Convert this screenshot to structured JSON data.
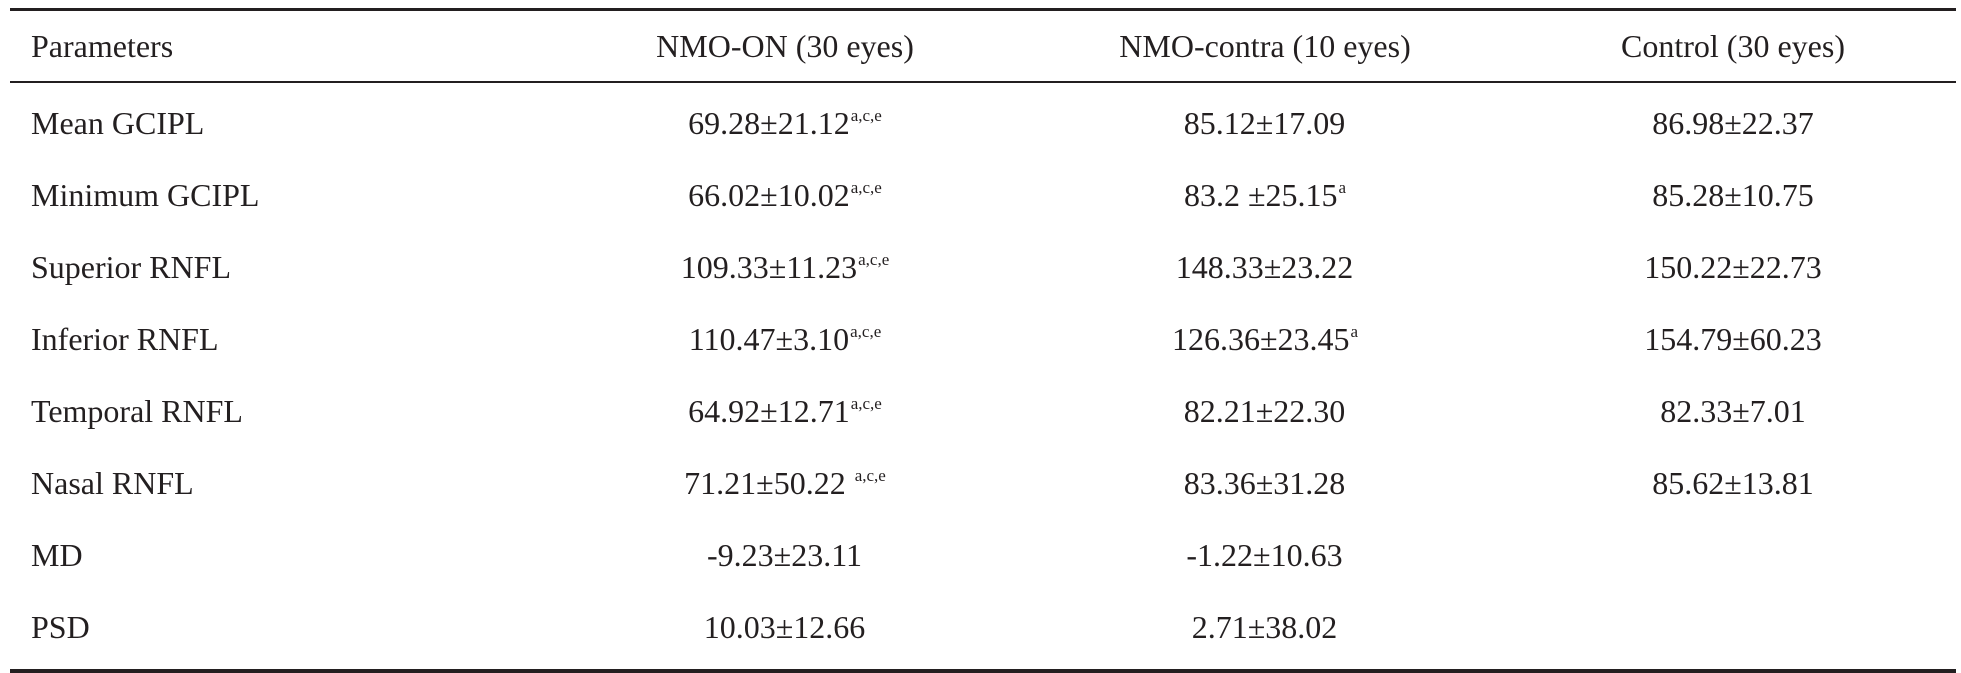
{
  "table": {
    "headers": [
      "Parameters",
      "NMO-ON (30 eyes)",
      "NMO-contra (10 eyes)",
      "Control (30 eyes)"
    ],
    "rows": [
      {
        "parameter": "Mean GCIPL",
        "nmo_on": "69.28±21.12",
        "nmo_on_sup": "a,c,e",
        "nmo_contra": "85.12±17.09",
        "nmo_contra_sup": "",
        "control": "86.98±22.37"
      },
      {
        "parameter": "Minimum GCIPL",
        "nmo_on": "66.02±10.02",
        "nmo_on_sup": "a,c,e",
        "nmo_contra": "83.2 ±25.15",
        "nmo_contra_sup": "a",
        "control": "85.28±10.75"
      },
      {
        "parameter": "Superior RNFL",
        "nmo_on": "109.33±11.23",
        "nmo_on_sup": "a,c,e",
        "nmo_contra": "148.33±23.22",
        "nmo_contra_sup": "",
        "control": "150.22±22.73"
      },
      {
        "parameter": "Inferior RNFL",
        "nmo_on": "110.47±3.10",
        "nmo_on_sup": "a,c,e",
        "nmo_contra": "126.36±23.45",
        "nmo_contra_sup": "a",
        "control": "154.79±60.23"
      },
      {
        "parameter": "Temporal RNFL",
        "nmo_on": "64.92±12.71",
        "nmo_on_sup": "a,c,e",
        "nmo_contra": "82.21±22.30",
        "nmo_contra_sup": "",
        "control": "82.33±7.01"
      },
      {
        "parameter": "Nasal RNFL",
        "nmo_on": "71.21±50.22 ",
        "nmo_on_sup": "a,c,e",
        "nmo_contra": "83.36±31.28",
        "nmo_contra_sup": "",
        "control": "85.62±13.81"
      },
      {
        "parameter": "MD",
        "nmo_on": "-9.23±23.11",
        "nmo_on_sup": "",
        "nmo_contra": "-1.22±10.63",
        "nmo_contra_sup": "",
        "control": ""
      },
      {
        "parameter": "PSD",
        "nmo_on": "10.03±12.66",
        "nmo_on_sup": "",
        "nmo_contra": "2.71±38.02",
        "nmo_contra_sup": "",
        "control": ""
      }
    ]
  }
}
